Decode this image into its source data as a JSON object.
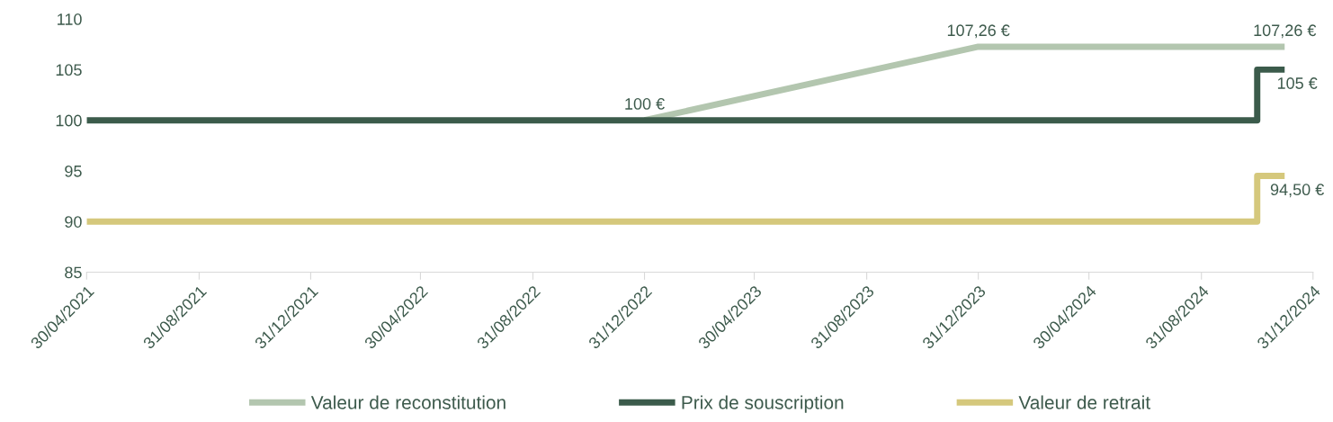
{
  "chart_data": {
    "type": "line",
    "xlim": [
      "2021-04-30",
      "2024-12-31"
    ],
    "xticks": [
      {
        "value": "2021-04-30",
        "label": "30/04/2021"
      },
      {
        "value": "2021-08-31",
        "label": "31/08/2021"
      },
      {
        "value": "2021-12-31",
        "label": "31/12/2021"
      },
      {
        "value": "2022-04-30",
        "label": "30/04/2022"
      },
      {
        "value": "2022-08-31",
        "label": "31/08/2022"
      },
      {
        "value": "2022-12-31",
        "label": "31/12/2022"
      },
      {
        "value": "2023-04-30",
        "label": "30/04/2023"
      },
      {
        "value": "2023-08-31",
        "label": "31/08/2023"
      },
      {
        "value": "2023-12-31",
        "label": "31/12/2023"
      },
      {
        "value": "2024-04-30",
        "label": "30/04/2024"
      },
      {
        "value": "2024-08-31",
        "label": "31/08/2024"
      },
      {
        "value": "2024-12-31",
        "label": "31/12/2024"
      }
    ],
    "ylim": [
      85,
      110
    ],
    "yticks": [
      85,
      90,
      95,
      100,
      105,
      110
    ],
    "grid": false,
    "legend": "bottom",
    "marker": "none",
    "line_style": "solid",
    "series": [
      {
        "name": "Valeur de reconstitution",
        "color": "#b3c6af",
        "x": [
          "2022-12-31",
          "2023-12-31",
          "2024-11-30"
        ],
        "values": [
          100,
          107.26,
          107.26
        ]
      },
      {
        "name": "Prix de souscription",
        "color": "#3b5b4b",
        "type": "step",
        "x": [
          "2021-04-30",
          "2024-10-31",
          "2024-11-30"
        ],
        "values": [
          100,
          105,
          105
        ]
      },
      {
        "name": "Valeur de retrait",
        "color": "#d5c87c",
        "type": "step",
        "x": [
          "2021-04-30",
          "2024-10-31",
          "2024-11-30"
        ],
        "values": [
          90,
          94.5,
          94.5
        ]
      }
    ],
    "annotations": [
      {
        "text": "100 €",
        "x": "2022-12-31",
        "y": 100
      },
      {
        "text": "107,26 €",
        "x": "2023-12-31",
        "y": 107.26
      },
      {
        "text": "107,26 €",
        "x": "2024-11-30",
        "y": 107.26
      },
      {
        "text": "105 €",
        "x": "2024-11-30",
        "y": 105
      },
      {
        "text": "94,50 €",
        "x": "2024-11-30",
        "y": 94.5
      }
    ]
  }
}
